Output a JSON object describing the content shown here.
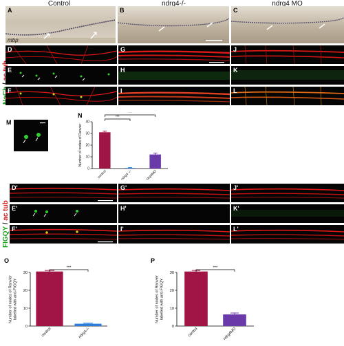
{
  "columns": {
    "control": "Control",
    "ndrg4_ko": "ndrg4-/-",
    "ndrg4_mo": "ndrg4 MO"
  },
  "mbp_label": "mbp",
  "side_labels": {
    "top": {
      "green": "NaCh",
      "sep": " / ",
      "red": "ac tub"
    },
    "bottom": {
      "green": "FIGQY",
      "sep": " / ",
      "red": "ac tub"
    }
  },
  "panels": {
    "A": "A",
    "B": "B",
    "C": "C",
    "D": "D",
    "E": "E",
    "F": "F",
    "G": "G",
    "H": "H",
    "I": "I",
    "J": "J",
    "K": "K",
    "L": "L",
    "M": "M",
    "N": "N",
    "D2": "D'",
    "E2": "E'",
    "F2": "F'",
    "G2": "G'",
    "H2": "H'",
    "I2": "I'",
    "J2": "J'",
    "K2": "K'",
    "L2": "L'",
    "O": "O",
    "P": "P"
  },
  "colors": {
    "maroon": "#a01545",
    "blue": "#2e7dd9",
    "purple": "#6a3aa8",
    "red_fluor": "#e01818",
    "green_fluor": "#2fd02f"
  },
  "chart_data": [
    {
      "type": "bar",
      "panel": "N",
      "categories": [
        "control",
        "ndrg4 -/-",
        "ndrg4MO"
      ],
      "values": [
        31,
        0.5,
        12
      ],
      "errors": [
        1,
        0.3,
        1.2
      ],
      "colors": [
        "#a01545",
        "#2e7dd9",
        "#6a3aa8"
      ],
      "ylabel": "Number of nodes of Ranvier",
      "ylim": [
        0,
        40
      ],
      "yticks": [
        0,
        10,
        20,
        30,
        40
      ],
      "significance": [
        {
          "from": 0,
          "to": 1,
          "label": "***"
        },
        {
          "from": 0,
          "to": 2,
          "label": "***"
        }
      ]
    },
    {
      "type": "bar",
      "panel": "O",
      "categories": [
        "control",
        "ndrg4-/-"
      ],
      "values": [
        30.5,
        1.3
      ],
      "errors": [
        0.6,
        0.3
      ],
      "colors": [
        "#a01545",
        "#2e7dd9"
      ],
      "ylabel": "Number of nodes of Ranvier labelled with anti-FIGQY",
      "ylim": [
        0,
        30
      ],
      "yticks": [
        0,
        10,
        20,
        30
      ],
      "significance": [
        {
          "from": 0,
          "to": 1,
          "label": "***"
        }
      ]
    },
    {
      "type": "bar",
      "panel": "P",
      "categories": [
        "control",
        "ndrg4MO"
      ],
      "values": [
        30.5,
        6.5
      ],
      "errors": [
        0.6,
        0.8
      ],
      "colors": [
        "#a01545",
        "#6a3aa8"
      ],
      "ylabel": "Number of nodes of Ranvier labelled with anti-FIGQY",
      "ylim": [
        0,
        30
      ],
      "yticks": [
        0,
        10,
        20,
        30
      ],
      "significance": [
        {
          "from": 0,
          "to": 1,
          "label": "***"
        }
      ]
    }
  ]
}
